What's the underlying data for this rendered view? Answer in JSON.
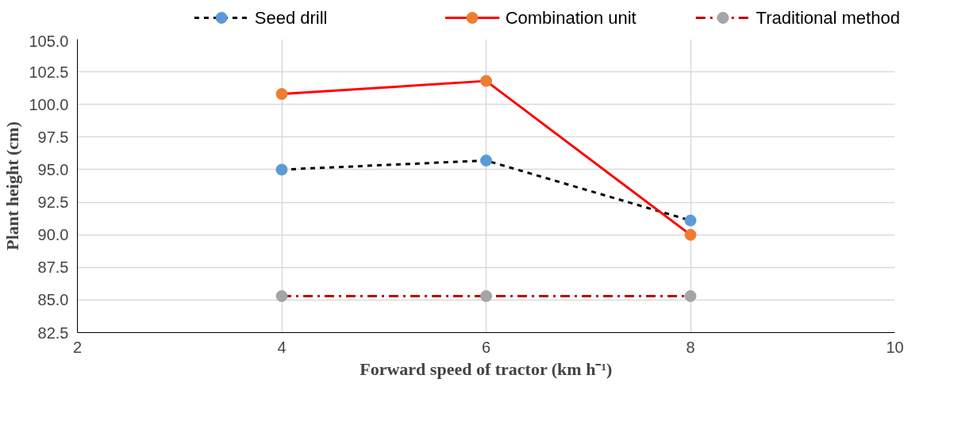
{
  "chart_data": {
    "type": "line",
    "xlabel": "Forward speed of tractor (km h⁻¹)",
    "ylabel": "Plant height (cm)",
    "x": [
      4,
      6,
      8
    ],
    "series": [
      {
        "name": "Seed drill",
        "color": "#000000",
        "colors": [
          "#5b9bd5",
          "#5b9bd5",
          "#5b9bd5"
        ],
        "line_style": "dashed",
        "values": [
          95.0,
          95.7,
          91.1
        ]
      },
      {
        "name": "Combination unit",
        "color": "#ff0000",
        "colors": [
          "#ed7d31",
          "#ed7d31",
          "#ed7d31"
        ],
        "line_style": "solid",
        "values": [
          100.8,
          101.8,
          90.0
        ]
      },
      {
        "name": "Traditional method",
        "color": "#c00000",
        "colors": [
          "#a5a5a5",
          "#a5a5a5",
          "#a5a5a5"
        ],
        "line_style": "dashdot",
        "values": [
          85.3,
          85.3,
          85.3
        ]
      }
    ],
    "xlim": [
      2,
      10
    ],
    "xticks": [
      2,
      4,
      6,
      8,
      10
    ],
    "ylim": [
      82.5,
      105
    ],
    "yticks": [
      {
        "value": 82.5,
        "label": "82.5"
      },
      {
        "value": 85,
        "label": "85.0"
      },
      {
        "value": 87.5,
        "label": "87.5"
      },
      {
        "value": 90,
        "label": "90.0"
      },
      {
        "value": 92.5,
        "label": "92.5"
      },
      {
        "value": 95,
        "label": "95.0"
      },
      {
        "value": 97.5,
        "label": "97.5"
      },
      {
        "value": 100,
        "label": "100.0"
      },
      {
        "value": 102.5,
        "label": "102.5"
      },
      {
        "value": 105,
        "label": "105.0"
      }
    ],
    "grid": true,
    "legend": "top",
    "marker": "circle"
  }
}
